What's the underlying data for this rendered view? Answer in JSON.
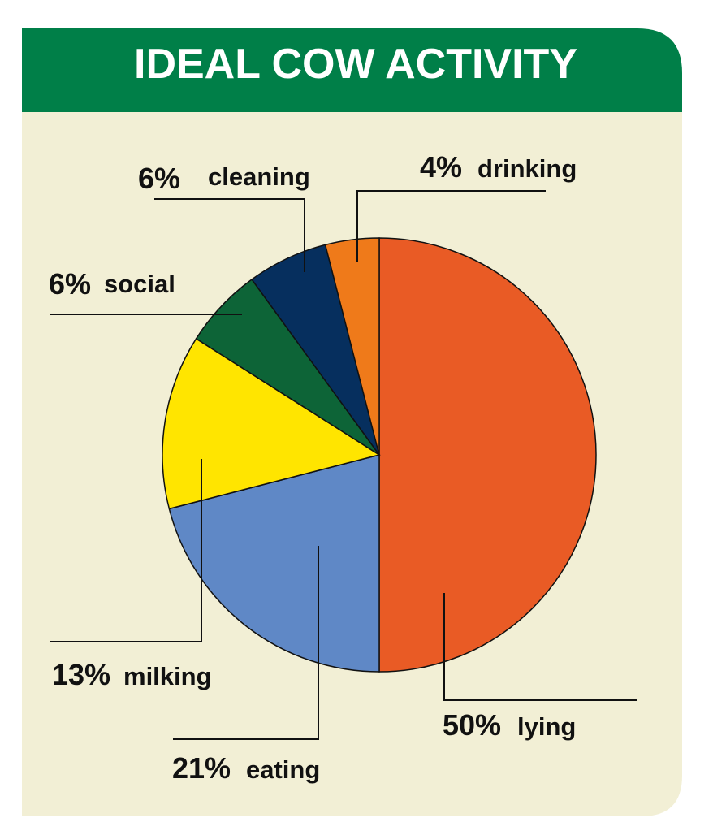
{
  "chart_data": {
    "type": "pie",
    "title": "IDEAL COW ACTIVITY",
    "categories": [
      "lying",
      "eating",
      "milking",
      "social",
      "cleaning",
      "drinking"
    ],
    "values": [
      50,
      21,
      13,
      6,
      6,
      4
    ],
    "value_labels": [
      "50%",
      "21%",
      "13%",
      "6%",
      "6%",
      "4%"
    ],
    "colors": [
      "#e95b25",
      "#5f88c6",
      "#ffe500",
      "#0d6437",
      "#062f5e",
      "#ef7a1a"
    ]
  }
}
